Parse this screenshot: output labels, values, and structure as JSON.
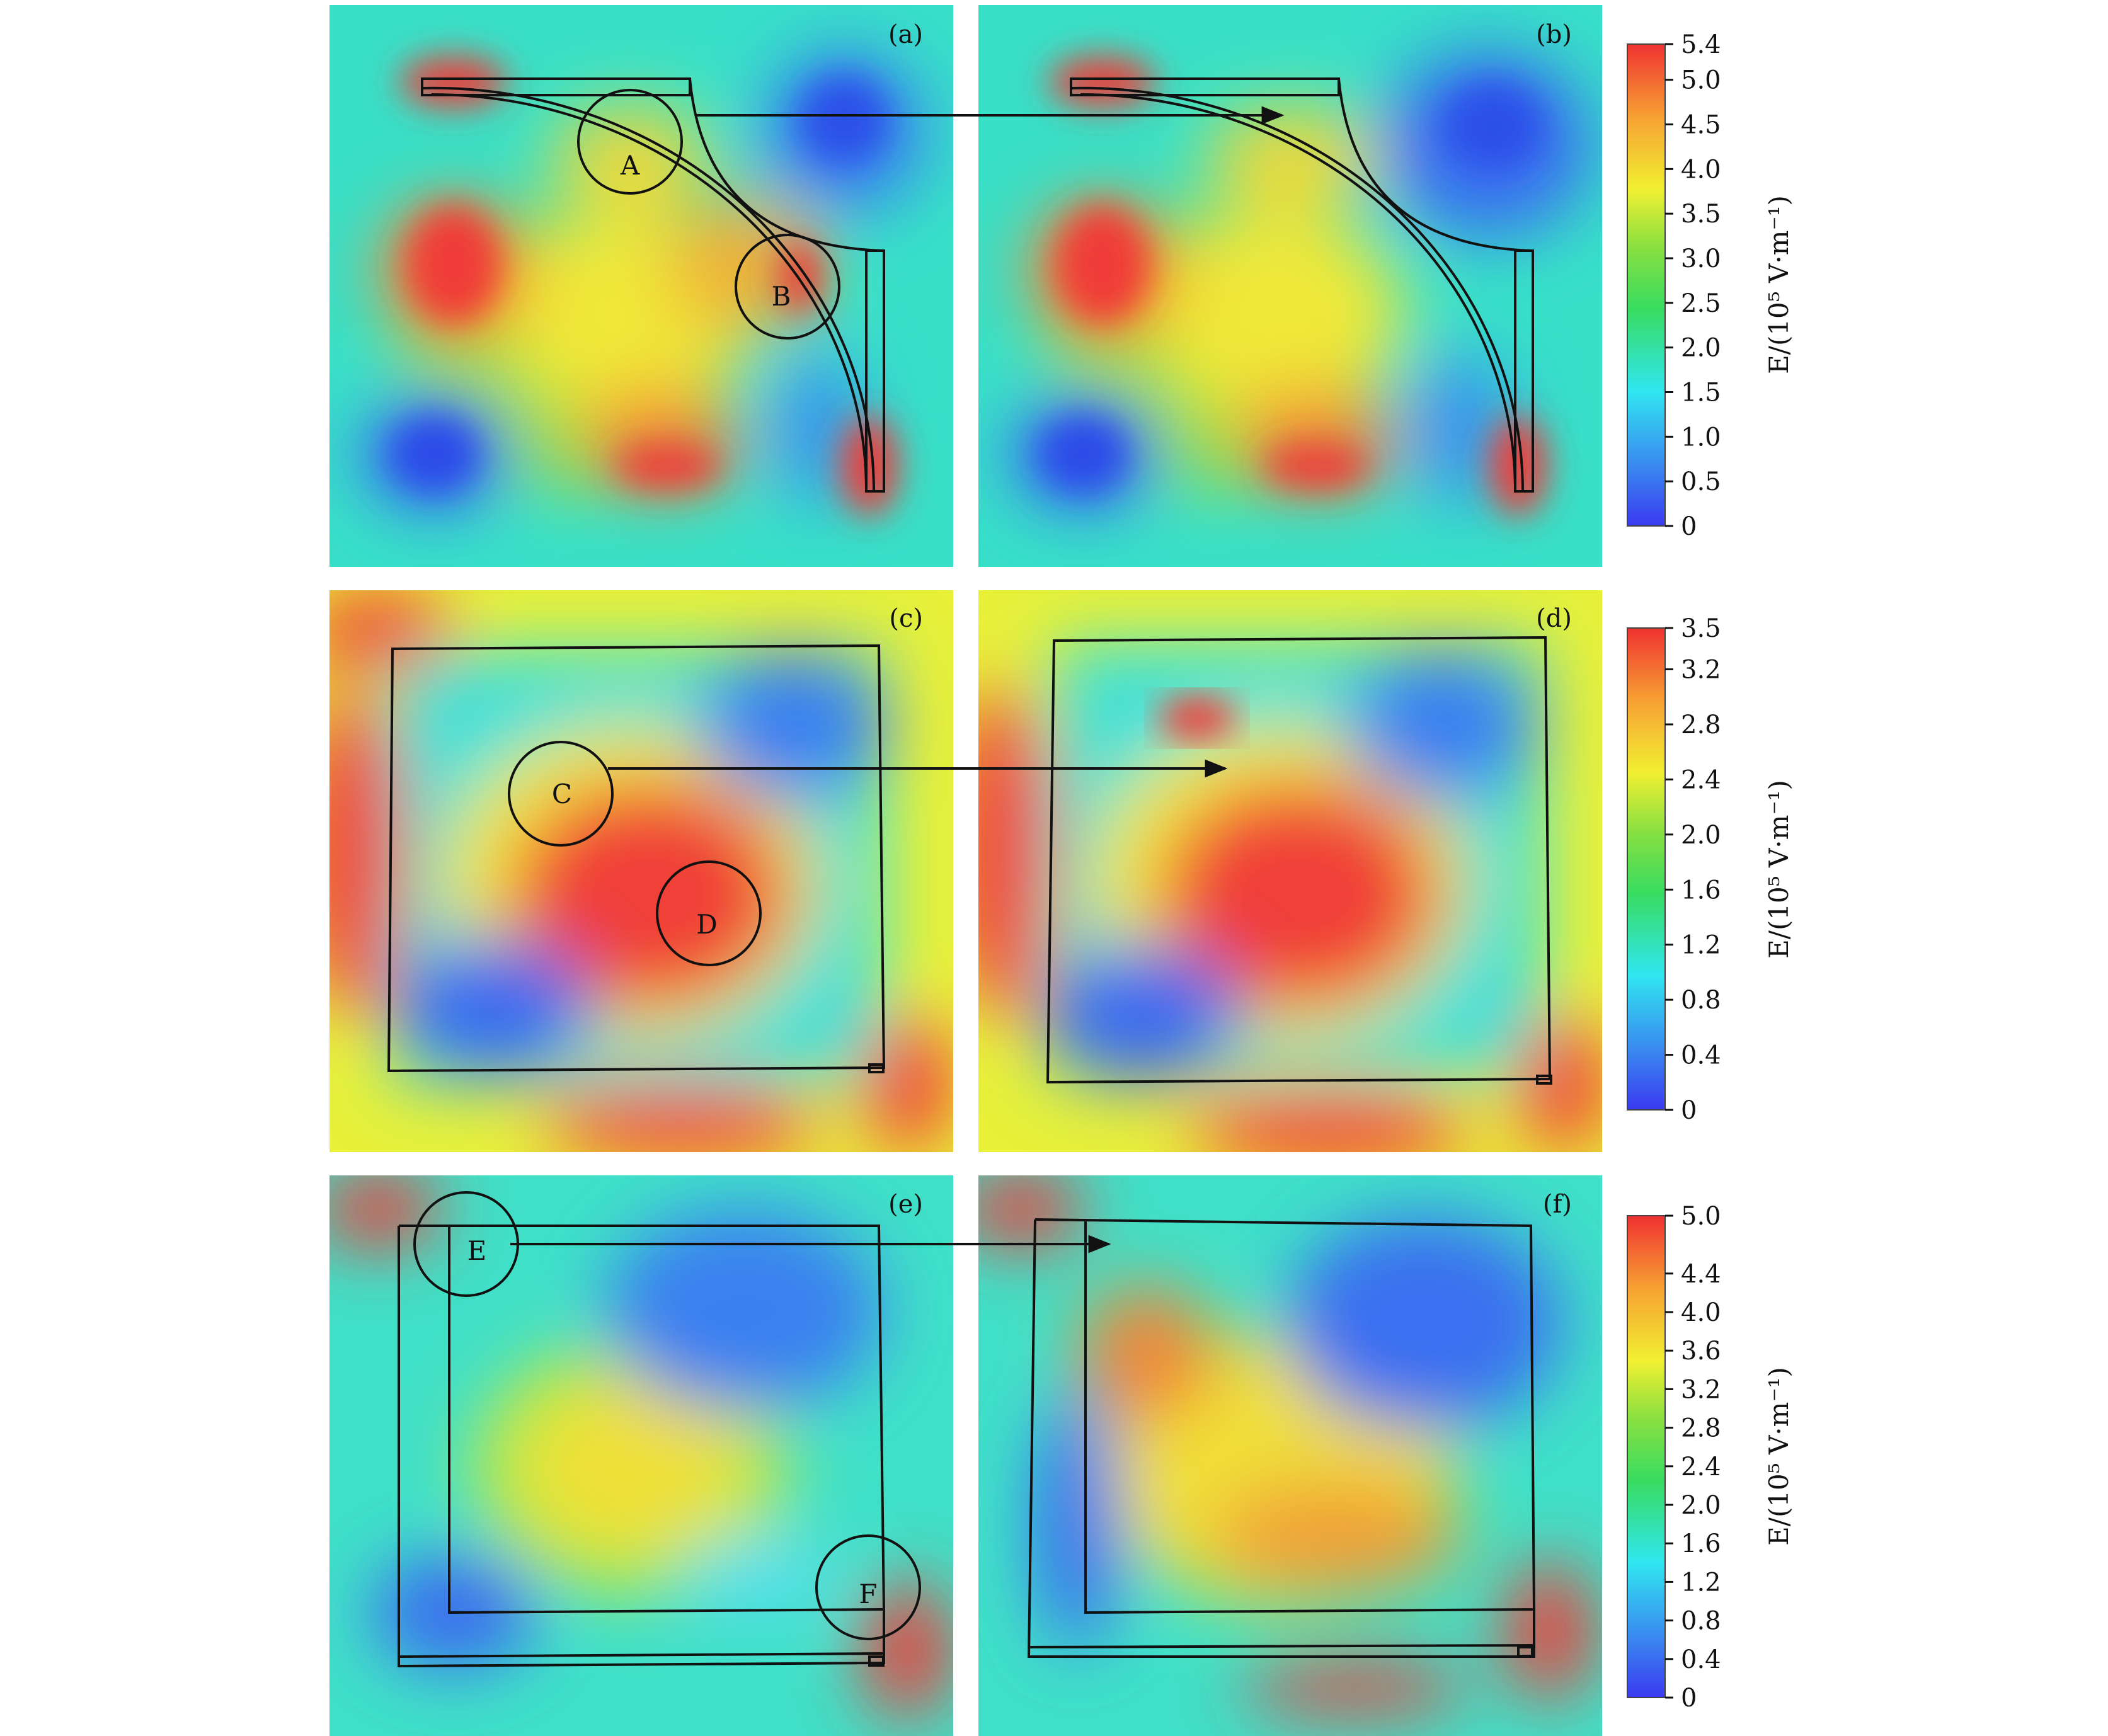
{
  "panels": [
    {
      "label": "(a)",
      "shape": "quarter-arc",
      "arrow_start": true,
      "circles": [
        {
          "label": "A"
        },
        {
          "label": "B"
        }
      ]
    },
    {
      "label": "(b)",
      "shape": "quarter-arc",
      "arrow_end": true,
      "circles": []
    },
    {
      "label": "(c)",
      "shape": "square",
      "arrow_start": true,
      "circles": [
        {
          "label": "C"
        },
        {
          "label": "D"
        }
      ]
    },
    {
      "label": "(d)",
      "shape": "square",
      "arrow_end": true,
      "circles": []
    },
    {
      "label": "(e)",
      "shape": "l-bracket",
      "arrow_start": true,
      "circles": [
        {
          "label": "E"
        },
        {
          "label": "F"
        }
      ]
    },
    {
      "label": "(f)",
      "shape": "l-bracket",
      "arrow_end": true,
      "circles": []
    }
  ],
  "colorbars": [
    {
      "title": "E/(10⁵ V·m⁻¹)",
      "min": 0,
      "max": 5.4,
      "ticks": [
        "0",
        "0.5",
        "1.0",
        "1.5",
        "2.0",
        "2.5",
        "3.0",
        "3.5",
        "4.0",
        "4.5",
        "5.0",
        "5.4"
      ]
    },
    {
      "title": "E/(10⁵ V·m⁻¹)",
      "min": 0,
      "max": 3.5,
      "ticks": [
        "0",
        "0.4",
        "0.8",
        "1.2",
        "1.6",
        "2.0",
        "2.4",
        "2.8",
        "3.2",
        "3.5"
      ]
    },
    {
      "title": "E/(10⁵ V·m⁻¹)",
      "min": 0,
      "max": 5.0,
      "ticks": [
        "0",
        "0.4",
        "0.8",
        "1.2",
        "1.6",
        "2.0",
        "2.4",
        "2.8",
        "3.2",
        "3.6",
        "4.0",
        "4.4",
        "5.0"
      ]
    }
  ],
  "colors": {
    "low": "#3040e8",
    "cyan": "#30e8f0",
    "green": "#40dc40",
    "yellow": "#f4f030",
    "orange": "#f8a030",
    "high": "#f03838"
  }
}
